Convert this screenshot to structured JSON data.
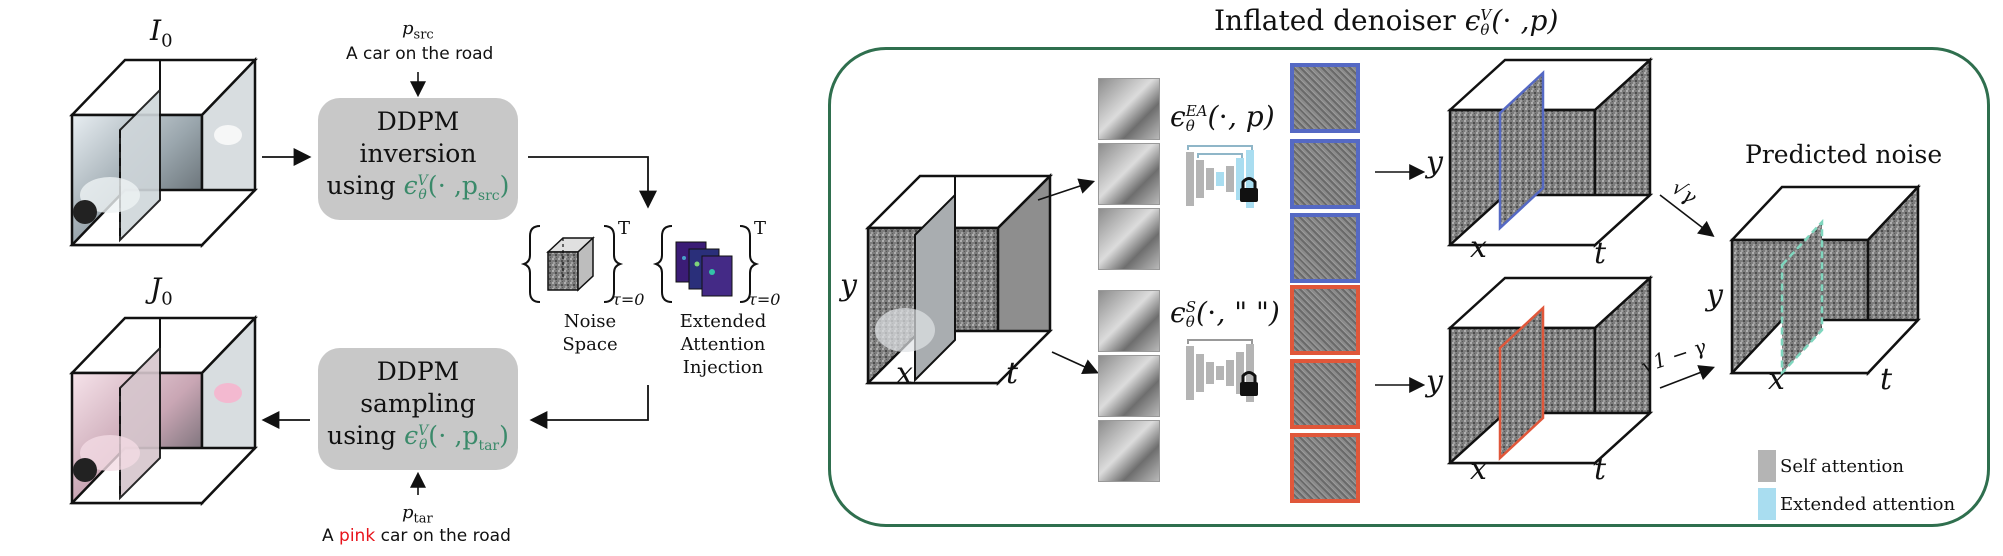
{
  "left": {
    "I0_label": "I",
    "I0_sub": "0",
    "J0_label": "J",
    "J0_sub": "0",
    "p_src_var": "p",
    "p_src_sub": "src",
    "p_src_text": "A car on the road",
    "p_tar_var": "p",
    "p_tar_sub": "tar",
    "p_tar_pre": "A ",
    "p_tar_word": "pink",
    "p_tar_post": " car on the road",
    "inversion_line1": "DDPM inversion",
    "inversion_using": "using ",
    "inversion_eps": "ϵ",
    "inversion_eps_sup": "V",
    "inversion_eps_sub": "θ",
    "inversion_args_pre": "(⋅ ,p",
    "inversion_args_sub": "src",
    "inversion_args_post": ")",
    "sampling_line1": "DDPM sampling",
    "sampling_using": "using ",
    "sampling_eps": "ϵ",
    "sampling_eps_sup": "V",
    "sampling_eps_sub": "θ",
    "sampling_args_pre": "(⋅ ,p",
    "sampling_args_sub": "tar",
    "sampling_args_post": ")",
    "set_sup": "T",
    "set_sub": "τ=0",
    "noise_space_1": "Noise",
    "noise_space_2": "Space",
    "ext_attn_1": "Extended",
    "ext_attn_2": "Attention",
    "ext_attn_3": "Injection"
  },
  "right": {
    "title_text": "Inflated denoiser ",
    "title_eps": "ϵ",
    "title_sup": "V",
    "title_sub": "θ",
    "title_args": "(⋅ ,p)",
    "axis_y": "y",
    "axis_x": "x",
    "axis_t": "t",
    "ea_eps": "ϵ",
    "ea_sup": "EA",
    "ea_sub": "θ",
    "ea_args": "(⋅, p)",
    "s_eps": "ϵ",
    "s_sup": "S",
    "s_sub": "θ",
    "s_args": "(⋅, \" \")",
    "sqrt_gamma": "√γ",
    "sqrt_one_minus_gamma": "√1 − γ",
    "predicted_noise": "Predicted noise",
    "legend_self": "Self attention",
    "legend_extended": "Extended attention"
  },
  "colors": {
    "frame": "#2f6f4e",
    "ea_border": "#5569c4",
    "s_border": "#e0573a",
    "green_text": "#3a8a6a",
    "pink_word": "#e8141c",
    "self_attention": "#b4b4b4",
    "extended_attention": "#a9ddf0",
    "box_fill": "#c8c8c8",
    "predicted_plane": "#7fd6be"
  }
}
